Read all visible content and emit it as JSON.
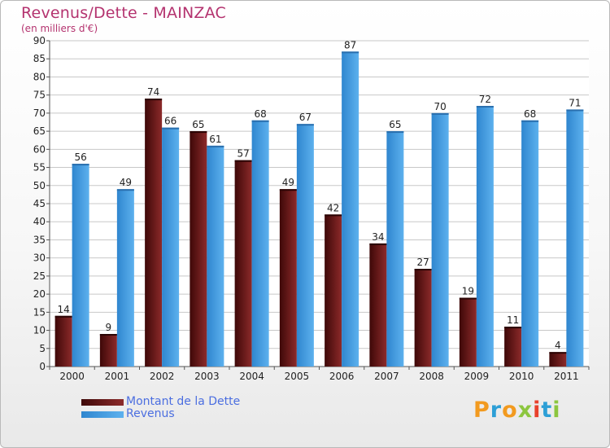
{
  "chart_data": {
    "type": "bar",
    "title": "Revenus/Dette - MAINZAC",
    "subtitle": "(en milliers d'€)",
    "categories": [
      "2000",
      "2001",
      "2002",
      "2003",
      "2004",
      "2005",
      "2006",
      "2007",
      "2008",
      "2009",
      "2010",
      "2011"
    ],
    "series": [
      {
        "name": "Montant de la Dette",
        "color": "#7a1f1f",
        "values": [
          14,
          9,
          74,
          65,
          57,
          49,
          42,
          34,
          27,
          19,
          11,
          4
        ]
      },
      {
        "name": "Revenus",
        "color": "#4aa3e6",
        "values": [
          56,
          49,
          66,
          61,
          68,
          67,
          87,
          65,
          70,
          72,
          68,
          71
        ]
      }
    ],
    "ylim": [
      0,
      90
    ],
    "yticks": [
      0,
      5,
      10,
      15,
      20,
      25,
      30,
      35,
      40,
      45,
      50,
      55,
      60,
      65,
      70,
      75,
      80,
      85,
      90
    ],
    "grid": true,
    "legend_position": "bottom-left"
  },
  "logo": {
    "letters": [
      "P",
      "r",
      "o",
      "x",
      "i",
      "t",
      "i"
    ],
    "colors": [
      "#f29a1f",
      "#2d9fd6",
      "#f29a1f",
      "#8cc63f",
      "#e8412c",
      "#2d9fd6",
      "#8cc63f"
    ]
  }
}
